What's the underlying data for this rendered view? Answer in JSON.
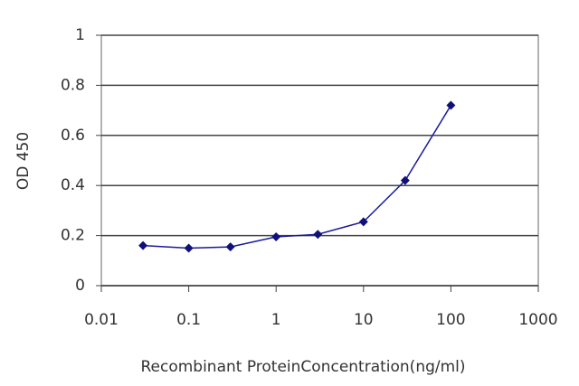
{
  "chart_data": {
    "type": "line",
    "x_label": "Recombinant ProteinConcentration(ng/ml)",
    "y_label": "OD 450",
    "x": [
      0.03,
      0.1,
      0.3,
      1,
      3,
      10,
      30,
      100
    ],
    "series": [
      {
        "color": "#1a1a9c",
        "values": [
          0.16,
          0.15,
          0.155,
          0.195,
          0.205,
          0.255,
          0.42,
          0.72
        ]
      }
    ],
    "xscale": "log",
    "xlim": [
      0.01,
      1000
    ],
    "xticks": [
      0.01,
      0.1,
      1,
      10,
      100,
      1000
    ],
    "ylim": [
      0,
      1
    ],
    "yticks": [
      0,
      0.2,
      0.4,
      0.6,
      0.8,
      1
    ],
    "grid": true
  }
}
